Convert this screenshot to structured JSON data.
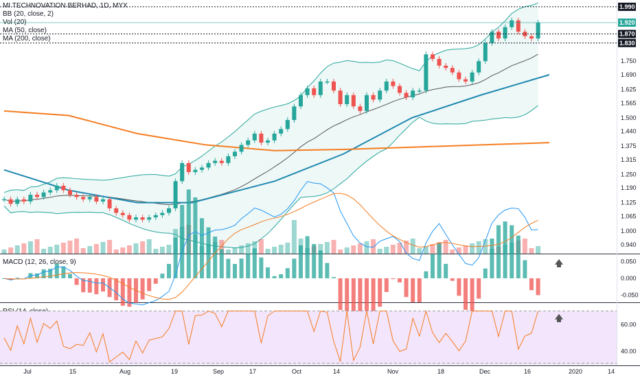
{
  "header": {
    "title": "MI TECHNOVATION BERHAD, 1D, MYX",
    "indicators": [
      "BB (20, close, 2)",
      "Vol (20)",
      "MA (50, close)",
      "MA (200, close)"
    ]
  },
  "macd_label": "MACD (12, 26, close, 9)",
  "rsi_label": "RSI (14, close)",
  "colors": {
    "up": "#26a69a",
    "down": "#ef5350",
    "bb": "#26a69a",
    "bbfill": "rgba(38,166,154,0.08)",
    "ma20": "#555555",
    "ma50": "#1e88b0",
    "ma200": "#f57c20",
    "macd": "#2196f3",
    "signal": "#f57c20",
    "rsi": "#f57c20",
    "rsi_bg": "#f3e5fb"
  },
  "chart_data": {
    "type": "candlestick",
    "x_tick_labels": [
      "Jul",
      "15",
      "Aug",
      "19",
      "Sep",
      "17",
      "Oct",
      "14",
      "Nov",
      "18",
      "Dec",
      "16",
      "2020",
      "14"
    ],
    "price_axis": [
      "1.990",
      "1.920",
      "1.870",
      "1.830",
      "1.750",
      "1.690",
      "1.625",
      "1.565",
      "1.500",
      "1.440",
      "1.375",
      "1.315",
      "1.250",
      "1.190",
      "1.125",
      "1.065",
      "1.000",
      "0.940"
    ],
    "price_tags": [
      {
        "label": "1.990",
        "value": 1.99,
        "style": "dark"
      },
      {
        "label": "1.920",
        "value": 1.92,
        "style": "accent"
      },
      {
        "label": "1.870",
        "value": 1.87,
        "style": "dark"
      },
      {
        "label": "1.830",
        "value": 1.83,
        "style": "dark"
      }
    ],
    "macd_axis": [
      "0.050",
      "0.000",
      "-0.050"
    ],
    "rsi_axis": [
      "60.00",
      "40.00"
    ],
    "candles_close": [
      1.14,
      1.12,
      1.14,
      1.13,
      1.16,
      1.15,
      1.17,
      1.18,
      1.2,
      1.18,
      1.16,
      1.15,
      1.14,
      1.15,
      1.13,
      1.14,
      1.1,
      1.08,
      1.07,
      1.05,
      1.06,
      1.05,
      1.06,
      1.07,
      1.08,
      1.1,
      1.22,
      1.3,
      1.26,
      1.27,
      1.28,
      1.3,
      1.31,
      1.3,
      1.33,
      1.35,
      1.38,
      1.4,
      1.43,
      1.39,
      1.4,
      1.43,
      1.45,
      1.49,
      1.55,
      1.6,
      1.63,
      1.6,
      1.66,
      1.66,
      1.62,
      1.56,
      1.6,
      1.55,
      1.53,
      1.6,
      1.58,
      1.62,
      1.66,
      1.64,
      1.61,
      1.59,
      1.62,
      1.62,
      1.78,
      1.76,
      1.73,
      1.72,
      1.7,
      1.67,
      1.66,
      1.7,
      1.75,
      1.83,
      1.88,
      1.85,
      1.9,
      1.93,
      1.88,
      1.86,
      1.85,
      1.92
    ],
    "macd_range": [
      -0.07,
      0.07
    ],
    "rsi_range": [
      30,
      75
    ]
  }
}
